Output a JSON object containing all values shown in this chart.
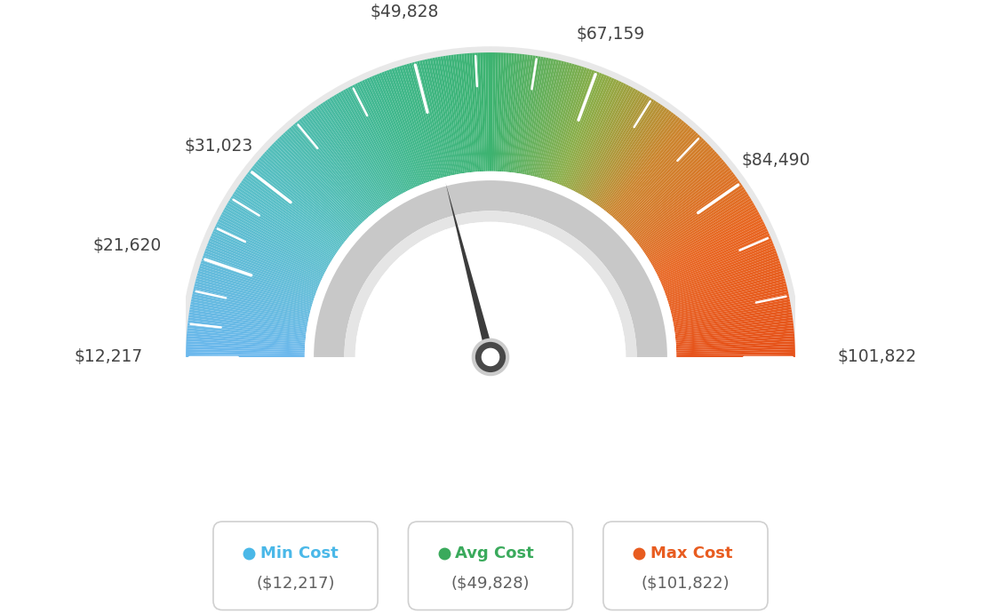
{
  "min_val": 12217,
  "max_val": 101822,
  "avg_val": 49828,
  "tick_labels": [
    "$12,217",
    "$21,620",
    "$31,023",
    "$49,828",
    "$67,159",
    "$84,490",
    "$101,822"
  ],
  "tick_values": [
    12217,
    21620,
    31023,
    49828,
    67159,
    84490,
    101822
  ],
  "legend_items": [
    {
      "label": "Min Cost",
      "value": "($12,217)",
      "color": "#4ab8e8"
    },
    {
      "label": "Avg Cost",
      "value": "($49,828)",
      "color": "#3aaa5c"
    },
    {
      "label": "Max Cost",
      "value": "($101,822)",
      "color": "#e85c20"
    }
  ],
  "background_color": "#ffffff",
  "color_stops": [
    [
      0.0,
      [
        0.42,
        0.72,
        0.93
      ]
    ],
    [
      0.2,
      [
        0.35,
        0.75,
        0.78
      ]
    ],
    [
      0.38,
      [
        0.25,
        0.72,
        0.55
      ]
    ],
    [
      0.5,
      [
        0.24,
        0.7,
        0.44
      ]
    ],
    [
      0.62,
      [
        0.55,
        0.68,
        0.28
      ]
    ],
    [
      0.72,
      [
        0.8,
        0.52,
        0.18
      ]
    ],
    [
      0.85,
      [
        0.91,
        0.4,
        0.13
      ]
    ],
    [
      1.0,
      [
        0.9,
        0.32,
        0.1
      ]
    ]
  ]
}
